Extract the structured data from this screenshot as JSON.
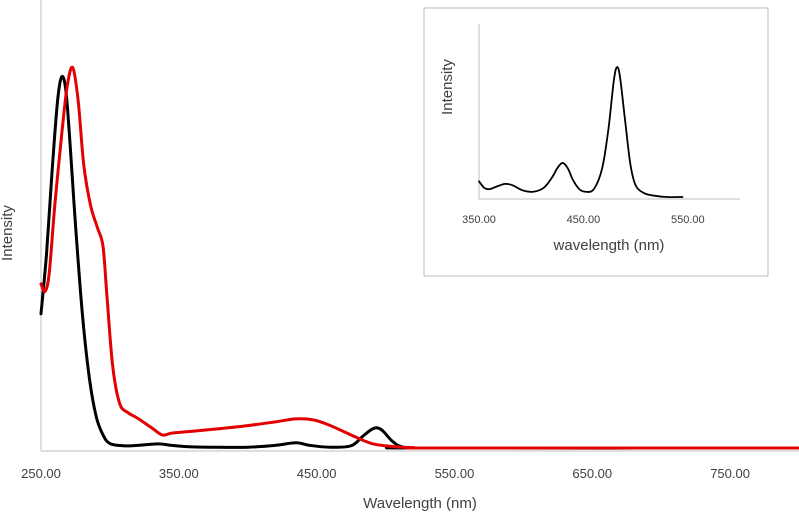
{
  "chart_data": [
    {
      "type": "line",
      "xlabel": "Wavelength (nm)",
      "ylabel": "Intensity",
      "xlim": [
        250,
        800
      ],
      "ylim": [
        0,
        1
      ],
      "x_ticks": [
        "250.00",
        "350.00",
        "450.00",
        "550.00",
        "650.00",
        "750.00"
      ],
      "grid": false,
      "series": [
        {
          "color": "#000000",
          "points": [
            [
              250,
              0.36
            ],
            [
              254,
              0.52
            ],
            [
              258,
              0.74
            ],
            [
              262,
              0.93
            ],
            [
              265,
              0.995
            ],
            [
              268,
              0.96
            ],
            [
              271,
              0.82
            ],
            [
              275,
              0.6
            ],
            [
              280,
              0.36
            ],
            [
              285,
              0.19
            ],
            [
              290,
              0.085
            ],
            [
              295,
              0.035
            ],
            [
              300,
              0.012
            ],
            [
              310,
              0.006
            ],
            [
              320,
              0.007
            ],
            [
              335,
              0.011
            ],
            [
              345,
              0.007
            ],
            [
              360,
              0.003
            ],
            [
              380,
              0.002
            ],
            [
              400,
              0.002
            ],
            [
              420,
              0.007
            ],
            [
              435,
              0.014
            ],
            [
              445,
              0.007
            ],
            [
              460,
              0.002
            ],
            [
              475,
              0.006
            ],
            [
              483,
              0.03
            ],
            [
              490,
              0.05
            ],
            [
              494,
              0.054
            ],
            [
              498,
              0.046
            ],
            [
              505,
              0.018
            ],
            [
              512,
              0.003
            ],
            [
              525,
              0.0
            ],
            [
              800,
              0.0
            ]
          ]
        },
        {
          "color": "#e30000",
          "points": [
            [
              250,
              0.44
            ],
            [
              253,
              0.42
            ],
            [
              256,
              0.47
            ],
            [
              260,
              0.65
            ],
            [
              265,
              0.84
            ],
            [
              269,
              0.97
            ],
            [
              273,
              1.02
            ],
            [
              277,
              0.93
            ],
            [
              281,
              0.76
            ],
            [
              286,
              0.65
            ],
            [
              291,
              0.59
            ],
            [
              295,
              0.54
            ],
            [
              298,
              0.4
            ],
            [
              302,
              0.22
            ],
            [
              307,
              0.12
            ],
            [
              313,
              0.095
            ],
            [
              320,
              0.08
            ],
            [
              330,
              0.055
            ],
            [
              338,
              0.035
            ],
            [
              345,
              0.04
            ],
            [
              360,
              0.045
            ],
            [
              380,
              0.052
            ],
            [
              400,
              0.06
            ],
            [
              420,
              0.07
            ],
            [
              435,
              0.078
            ],
            [
              448,
              0.075
            ],
            [
              460,
              0.06
            ],
            [
              475,
              0.035
            ],
            [
              490,
              0.012
            ],
            [
              505,
              0.004
            ],
            [
              520,
              0.001
            ],
            [
              540,
              0.0
            ],
            [
              800,
              0.0
            ]
          ]
        }
      ]
    },
    {
      "type": "line",
      "xlabel": "wavelength (nm)",
      "ylabel": "Intensity",
      "xlim": [
        350,
        600
      ],
      "ylim": [
        0,
        1
      ],
      "x_ticks": [
        "350.00",
        "450.00",
        "550.00"
      ],
      "grid": false,
      "series": [
        {
          "color": "#000000",
          "points": [
            [
              350,
              0.12
            ],
            [
              355,
              0.07
            ],
            [
              360,
              0.06
            ],
            [
              367,
              0.08
            ],
            [
              375,
              0.1
            ],
            [
              382,
              0.09
            ],
            [
              392,
              0.05
            ],
            [
              402,
              0.04
            ],
            [
              412,
              0.07
            ],
            [
              420,
              0.15
            ],
            [
              425,
              0.22
            ],
            [
              430,
              0.26
            ],
            [
              435,
              0.22
            ],
            [
              440,
              0.13
            ],
            [
              446,
              0.06
            ],
            [
              452,
              0.04
            ],
            [
              460,
              0.06
            ],
            [
              468,
              0.22
            ],
            [
              474,
              0.52
            ],
            [
              479,
              0.88
            ],
            [
              482,
              0.99
            ],
            [
              485,
              0.92
            ],
            [
              490,
              0.58
            ],
            [
              495,
              0.25
            ],
            [
              500,
              0.09
            ],
            [
              508,
              0.03
            ],
            [
              518,
              0.01
            ],
            [
              530,
              0.0
            ],
            [
              545,
              0.0
            ]
          ]
        }
      ]
    }
  ]
}
